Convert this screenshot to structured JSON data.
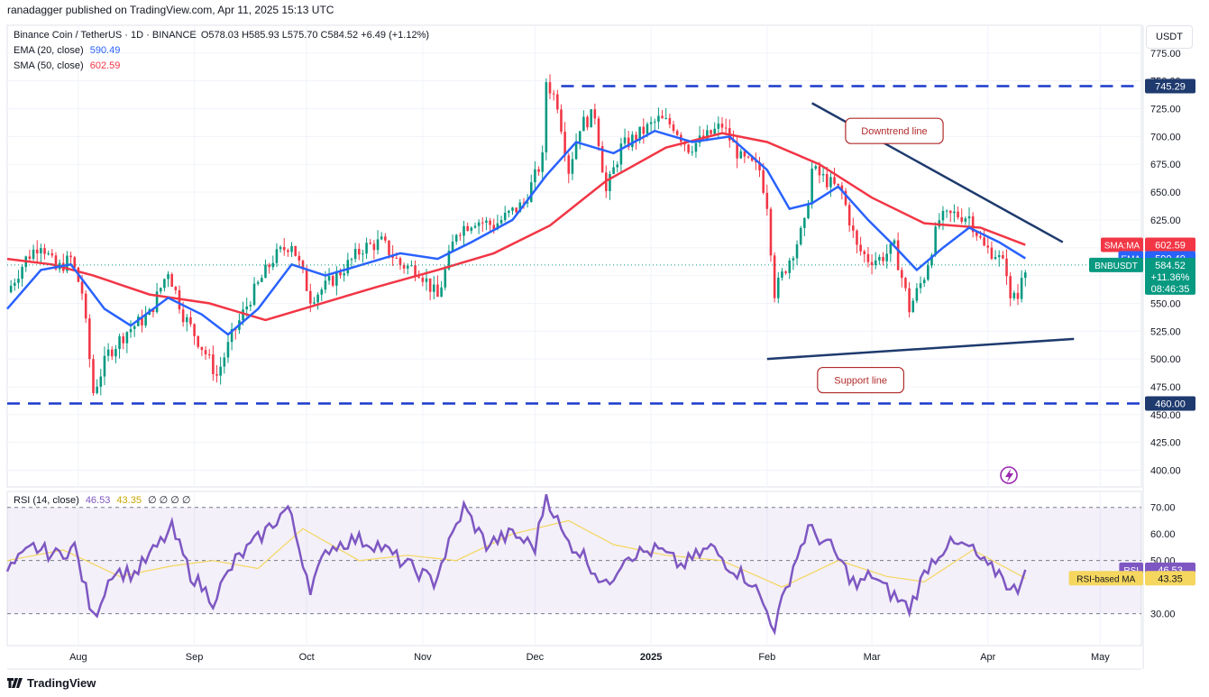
{
  "publisher": "ranadagger published on TradingView.com, Apr 11, 2025 15:13 UTC",
  "legend": {
    "symbol": "Binance Coin / TetherUS · 1D · BINANCE",
    "ohlc": "O578.03 H585.93 L575.70 C584.52 +6.49 (+1.12%)",
    "ema_label": "EMA (20, close)",
    "ema_value": "590.49",
    "sma_label": "SMA (50, close)",
    "sma_value": "602.59"
  },
  "currency": "USDT",
  "rsi_legend": {
    "label": "RSI (14, close)",
    "value": "46.53",
    "ma_value": "43.35",
    "extra": "∅ ∅ ∅ ∅"
  },
  "footer_logo": "TradingView",
  "colors": {
    "up": "#089981",
    "down": "#f23645",
    "ema": "#2962ff",
    "sma": "#f23645",
    "rsi": "#7e57c2",
    "rsi_ma": "#f5d65e",
    "trendline": "#1e3a6e",
    "level": "#1a3acc"
  },
  "chart_data": [
    {
      "type": "candlestick",
      "symbol": "BNBUSDT",
      "timeframe": "1D",
      "ylim": [
        385,
        800
      ],
      "y_ticks": [
        400,
        425,
        450,
        475,
        500,
        525,
        550,
        575,
        600,
        625,
        650,
        675,
        700,
        725,
        750,
        775
      ],
      "x_ticks": [
        "Aug",
        "Sep",
        "Oct",
        "Nov",
        "Dec",
        "2025",
        "Feb",
        "Mar",
        "Apr",
        "May"
      ],
      "x_range": [
        "2024-07-13",
        "2025-05-12"
      ],
      "close_path": [
        [
          "2024-07-13",
          560
        ],
        [
          "2024-07-18",
          590
        ],
        [
          "2024-07-22",
          605
        ],
        [
          "2024-07-26",
          580
        ],
        [
          "2024-07-30",
          590
        ],
        [
          "2024-08-02",
          560
        ],
        [
          "2024-08-05",
          470
        ],
        [
          "2024-08-09",
          505
        ],
        [
          "2024-08-14",
          525
        ],
        [
          "2024-08-20",
          540
        ],
        [
          "2024-08-25",
          580
        ],
        [
          "2024-08-29",
          540
        ],
        [
          "2024-09-04",
          505
        ],
        [
          "2024-09-07",
          485
        ],
        [
          "2024-09-11",
          520
        ],
        [
          "2024-09-16",
          555
        ],
        [
          "2024-09-22",
          590
        ],
        [
          "2024-09-27",
          605
        ],
        [
          "2024-10-02",
          555
        ],
        [
          "2024-10-06",
          565
        ],
        [
          "2024-10-12",
          585
        ],
        [
          "2024-10-16",
          600
        ],
        [
          "2024-10-21",
          605
        ],
        [
          "2024-10-26",
          585
        ],
        [
          "2024-10-31",
          580
        ],
        [
          "2024-11-05",
          555
        ],
        [
          "2024-11-10",
          615
        ],
        [
          "2024-11-15",
          625
        ],
        [
          "2024-11-20",
          620
        ],
        [
          "2024-11-24",
          630
        ],
        [
          "2024-11-28",
          640
        ],
        [
          "2024-12-03",
          680
        ],
        [
          "2024-12-04",
          750
        ],
        [
          "2024-12-07",
          730
        ],
        [
          "2024-12-10",
          670
        ],
        [
          "2024-12-13",
          710
        ],
        [
          "2024-12-17",
          720
        ],
        [
          "2024-12-20",
          650
        ],
        [
          "2024-12-24",
          690
        ],
        [
          "2024-12-28",
          700
        ],
        [
          "2025-01-03",
          715
        ],
        [
          "2025-01-07",
          710
        ],
        [
          "2025-01-11",
          690
        ],
        [
          "2025-01-16",
          700
        ],
        [
          "2025-01-20",
          710
        ],
        [
          "2025-01-25",
          680
        ],
        [
          "2025-01-30",
          670
        ],
        [
          "2025-02-01",
          640
        ],
        [
          "2025-02-03",
          560
        ],
        [
          "2025-02-07",
          590
        ],
        [
          "2025-02-11",
          620
        ],
        [
          "2025-02-13",
          670
        ],
        [
          "2025-02-17",
          660
        ],
        [
          "2025-02-21",
          650
        ],
        [
          "2025-02-25",
          600
        ],
        [
          "2025-02-28",
          590
        ],
        [
          "2025-03-03",
          590
        ],
        [
          "2025-03-07",
          600
        ],
        [
          "2025-03-10",
          560
        ],
        [
          "2025-03-11",
          545
        ],
        [
          "2025-03-15",
          575
        ],
        [
          "2025-03-19",
          625
        ],
        [
          "2025-03-23",
          630
        ],
        [
          "2025-03-27",
          628
        ],
        [
          "2025-03-31",
          600
        ],
        [
          "2025-04-03",
          595
        ],
        [
          "2025-04-06",
          580
        ],
        [
          "2025-04-07",
          550
        ],
        [
          "2025-04-08",
          560
        ],
        [
          "2025-04-09",
          555
        ],
        [
          "2025-04-10",
          578
        ],
        [
          "2025-04-11",
          584.52
        ]
      ],
      "ema20_path": [
        [
          "2024-07-13",
          545
        ],
        [
          "2024-07-22",
          580
        ],
        [
          "2024-07-30",
          585
        ],
        [
          "2024-08-08",
          545
        ],
        [
          "2024-08-15",
          530
        ],
        [
          "2024-08-25",
          555
        ],
        [
          "2024-09-03",
          540
        ],
        [
          "2024-09-10",
          522
        ],
        [
          "2024-09-18",
          545
        ],
        [
          "2024-09-27",
          585
        ],
        [
          "2024-10-06",
          575
        ],
        [
          "2024-10-16",
          585
        ],
        [
          "2024-10-26",
          595
        ],
        [
          "2024-11-05",
          590
        ],
        [
          "2024-11-14",
          605
        ],
        [
          "2024-11-25",
          625
        ],
        [
          "2024-12-04",
          665
        ],
        [
          "2024-12-12",
          695
        ],
        [
          "2024-12-22",
          685
        ],
        [
          "2025-01-02",
          705
        ],
        [
          "2025-01-12",
          695
        ],
        [
          "2025-01-22",
          700
        ],
        [
          "2025-02-01",
          670
        ],
        [
          "2025-02-07",
          635
        ],
        [
          "2025-02-13",
          640
        ],
        [
          "2025-02-20",
          655
        ],
        [
          "2025-02-28",
          625
        ],
        [
          "2025-03-06",
          605
        ],
        [
          "2025-03-13",
          580
        ],
        [
          "2025-03-20",
          600
        ],
        [
          "2025-03-27",
          618
        ],
        [
          "2025-04-04",
          605
        ],
        [
          "2025-04-11",
          590.49
        ]
      ],
      "sma50_path": [
        [
          "2024-07-13",
          590
        ],
        [
          "2024-07-25",
          585
        ],
        [
          "2024-08-05",
          575
        ],
        [
          "2024-08-20",
          558
        ],
        [
          "2024-09-05",
          550
        ],
        [
          "2024-09-20",
          535
        ],
        [
          "2024-10-05",
          550
        ],
        [
          "2024-10-20",
          565
        ],
        [
          "2024-11-05",
          580
        ],
        [
          "2024-11-20",
          595
        ],
        [
          "2024-12-05",
          620
        ],
        [
          "2024-12-20",
          660
        ],
        [
          "2025-01-05",
          690
        ],
        [
          "2025-01-20",
          703
        ],
        [
          "2025-02-01",
          695
        ],
        [
          "2025-02-15",
          675
        ],
        [
          "2025-03-01",
          645
        ],
        [
          "2025-03-15",
          622
        ],
        [
          "2025-03-30",
          618
        ],
        [
          "2025-04-11",
          602.59
        ]
      ],
      "levels": [
        {
          "value": 745.29,
          "label": "745.29",
          "from": "2024-12-08"
        },
        {
          "value": 460.0,
          "label": "460.00",
          "from": "2024-07-13"
        }
      ],
      "trendlines": [
        {
          "name": "Downtrend line",
          "from": [
            "2025-02-13",
            730
          ],
          "to": [
            "2025-04-21",
            605
          ]
        },
        {
          "name": "Support line",
          "from": [
            "2025-02-01",
            500
          ],
          "to": [
            "2025-04-24",
            518
          ]
        }
      ],
      "annotations": [
        {
          "text": "Downtrend line",
          "at": [
            "2025-03-07",
            705
          ]
        },
        {
          "text": "Support line",
          "at": [
            "2025-02-26",
            481
          ]
        }
      ],
      "price_labels": [
        {
          "text": "745.29",
          "value": 745.29,
          "color": "#131722"
        },
        {
          "text": "602.59",
          "tag": "SMA:MA",
          "value": 602.59,
          "color": "#f23645"
        },
        {
          "text": "590.49",
          "tag": "EMA",
          "value": 590.49,
          "color": "#2962ff"
        },
        {
          "text": "584.52",
          "tag": "BNBUSDT",
          "extra": "+11.36%",
          "timer": "08:46:35",
          "value": 584.52,
          "color": "#089981"
        },
        {
          "text": "460.00",
          "value": 460.0,
          "color": "#131722"
        }
      ]
    },
    {
      "type": "line",
      "name": "RSI (14, close)",
      "ylim": [
        18,
        76
      ],
      "y_ticks": [
        30,
        50,
        60,
        70
      ],
      "band": [
        30,
        70
      ],
      "midline": 50,
      "rsi_path": [
        [
          "2024-07-13",
          46
        ],
        [
          "2024-07-20",
          55
        ],
        [
          "2024-07-26",
          52
        ],
        [
          "2024-07-31",
          55
        ],
        [
          "2024-08-05",
          28
        ],
        [
          "2024-08-10",
          46
        ],
        [
          "2024-08-16",
          45
        ],
        [
          "2024-08-22",
          55
        ],
        [
          "2024-08-26",
          62
        ],
        [
          "2024-08-31",
          45
        ],
        [
          "2024-09-06",
          35
        ],
        [
          "2024-09-12",
          50
        ],
        [
          "2024-09-18",
          58
        ],
        [
          "2024-09-26",
          70
        ],
        [
          "2024-10-02",
          40
        ],
        [
          "2024-10-07",
          55
        ],
        [
          "2024-10-14",
          58
        ],
        [
          "2024-10-20",
          56
        ],
        [
          "2024-10-26",
          50
        ],
        [
          "2024-11-04",
          42
        ],
        [
          "2024-11-12",
          70
        ],
        [
          "2024-11-18",
          56
        ],
        [
          "2024-11-25",
          60
        ],
        [
          "2024-12-01",
          55
        ],
        [
          "2024-12-04",
          75
        ],
        [
          "2024-12-09",
          58
        ],
        [
          "2024-12-14",
          52
        ],
        [
          "2024-12-20",
          40
        ],
        [
          "2024-12-25",
          52
        ],
        [
          "2025-01-03",
          54
        ],
        [
          "2025-01-09",
          48
        ],
        [
          "2025-01-17",
          55
        ],
        [
          "2025-01-22",
          48
        ],
        [
          "2025-01-28",
          42
        ],
        [
          "2025-02-03",
          25
        ],
        [
          "2025-02-08",
          48
        ],
        [
          "2025-02-12",
          62
        ],
        [
          "2025-02-18",
          55
        ],
        [
          "2025-02-25",
          40
        ],
        [
          "2025-03-01",
          45
        ],
        [
          "2025-03-04",
          40
        ],
        [
          "2025-03-11",
          32
        ],
        [
          "2025-03-16",
          48
        ],
        [
          "2025-03-21",
          56
        ],
        [
          "2025-03-27",
          55
        ],
        [
          "2025-04-01",
          47
        ],
        [
          "2025-04-05",
          45
        ],
        [
          "2025-04-07",
          38
        ],
        [
          "2025-04-09",
          40
        ],
        [
          "2025-04-11",
          46.53
        ]
      ],
      "rsi_ma_path": [
        [
          "2024-07-13",
          50
        ],
        [
          "2024-07-28",
          54
        ],
        [
          "2024-08-12",
          44
        ],
        [
          "2024-08-26",
          48
        ],
        [
          "2024-09-06",
          50
        ],
        [
          "2024-09-18",
          47
        ],
        [
          "2024-09-30",
          62
        ],
        [
          "2024-10-15",
          50
        ],
        [
          "2024-10-28",
          52
        ],
        [
          "2024-11-10",
          50
        ],
        [
          "2024-11-25",
          60
        ],
        [
          "2024-12-10",
          65
        ],
        [
          "2024-12-22",
          56
        ],
        [
          "2025-01-05",
          52
        ],
        [
          "2025-01-20",
          50
        ],
        [
          "2025-02-05",
          40
        ],
        [
          "2025-02-20",
          50
        ],
        [
          "2025-03-05",
          44
        ],
        [
          "2025-03-15",
          42
        ],
        [
          "2025-03-28",
          54
        ],
        [
          "2025-04-11",
          43.35
        ]
      ],
      "price_labels": [
        {
          "tag": "RSI",
          "text": "46.53",
          "value": 46.53,
          "color": "#7e57c2"
        },
        {
          "tag": "RSI-based MA",
          "text": "43.35",
          "value": 43.35,
          "color": "#f5d65e"
        }
      ]
    }
  ]
}
